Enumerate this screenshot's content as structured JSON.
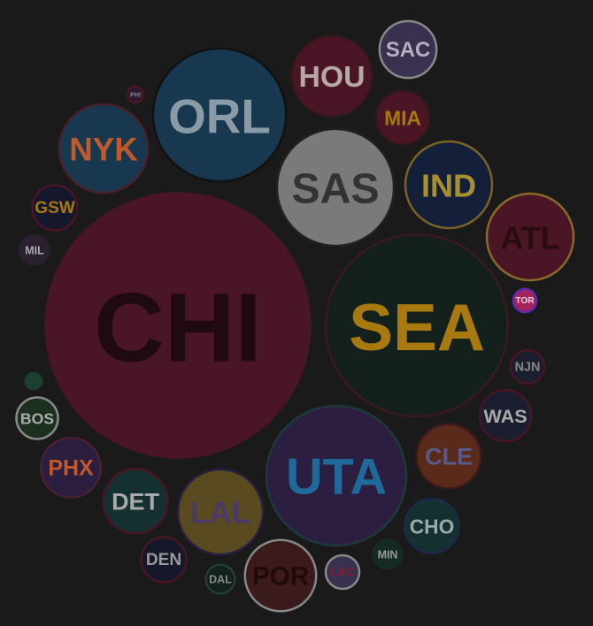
{
  "chart_data": {
    "type": "bubble",
    "categories": [
      "CHI",
      "SEA",
      "UTA",
      "ORL",
      "SAS",
      "NYK",
      "IND",
      "ATL",
      "LAL",
      "HOU",
      "POR",
      "CLE",
      "DET",
      "PHX",
      "SAC",
      "MIA",
      "CHO",
      "WAS",
      "GSW",
      "DEN",
      "BOS",
      "NJN",
      "LAC",
      "MIN",
      "DAL",
      "MIL",
      "TOR",
      "PHI",
      null
    ],
    "values": [
      234,
      108,
      64,
      58,
      45,
      26,
      25,
      25,
      24,
      22,
      17,
      14,
      14,
      12,
      11,
      10,
      10,
      9,
      7,
      7,
      6,
      4,
      4,
      3,
      3,
      3,
      2,
      1,
      1
    ],
    "colors": [
      "#4a1524",
      "#14201c",
      "#2c1e40",
      "#17384e",
      "#7a7a7a",
      "#17384e",
      "#14203a",
      "#4a1524",
      "#5a4a20",
      "#4a1524",
      "#3a1a1a",
      "#5a2a1a",
      "#143030",
      "#2c1e40",
      "#3a3050",
      "#4a1524",
      "#143030",
      "#1a1e2e",
      "#14182a",
      "#14182a",
      "#1c3020",
      "#1a1e2e",
      "#3a3050",
      "#142a24",
      "#14201c",
      "#2a2030",
      "#a6235a",
      "#2a1830",
      "#1c4030"
    ],
    "label_colors": [
      "#1e0a0f",
      "#a8790f",
      "#1f6a9a",
      "#8a9aa6",
      "#333333",
      "#c05a2a",
      "#a8902f",
      "#2a0c10",
      "#4a3a6a",
      "#b7a7a9",
      "#200a0a",
      "#5a5a8a",
      "#aaaaaa",
      "#c05a2a",
      "#b6b0c0",
      "#a8790f",
      "#99aaaa",
      "#aaaaaa",
      "#a8790f",
      "#999999",
      "#aaaaaa",
      "#888888",
      "#7a2030",
      "#999999",
      "#888888",
      "#aaaaaa",
      "#dddddd",
      "#888888",
      "#888888"
    ],
    "stroke_colors": [
      "#1a1a1a",
      "#3a1a1d",
      "#1c3a3a",
      "#111111",
      "#222222",
      "#4a2030",
      "#7a6228",
      "#8a6a28",
      "#2a2040",
      "#2a1a1a",
      "#888888",
      "#3a1a1a",
      "#4a1524",
      "#4a2030",
      "#888888",
      "#2a1a1a",
      "#1e2a4a",
      "#4a1524",
      "#4a1524",
      "#4a1524",
      "#888888",
      "#4a1524",
      "#888888",
      "#1a2a24",
      "#224030",
      "#2a2030",
      "#5a2ab0",
      "#4a1524",
      "#1c4030"
    ]
  }
}
